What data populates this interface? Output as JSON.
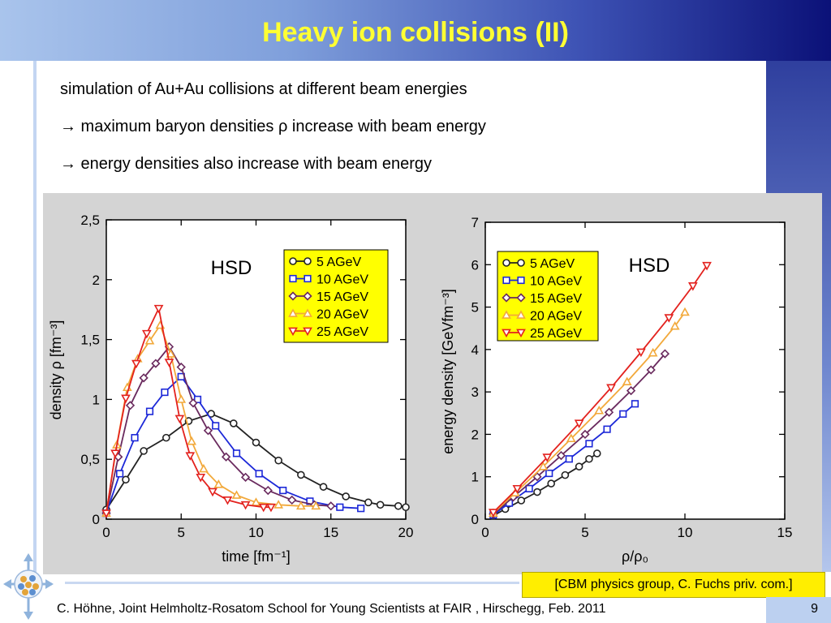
{
  "slide": {
    "title": "Heavy ion collisions (II)",
    "bullets": [
      "simulation of Au+Au collisions at different beam energies",
      "→ maximum baryon densities ρ increase with beam energy",
      "→ energy densities also increase with beam energy"
    ],
    "citation": "[CBM physics group, C. Fuchs priv. com.]",
    "footer": "C. Höhne,   Joint Helmholtz-Rosatom School for Young Scientists at FAIR , Hirschegg, Feb. 2011",
    "page_number": "9"
  },
  "colors": {
    "title": "#ffff33",
    "legend_bg": "#ffff00",
    "series": [
      "#222222",
      "#1c28d8",
      "#6a2a5e",
      "#f2a93b",
      "#e3221e"
    ]
  },
  "chart_data": [
    {
      "type": "line",
      "label": "HSD",
      "xlabel": "time [fm⁻¹]",
      "ylabel": "density ρ [fm⁻³]",
      "xlim": [
        0,
        20
      ],
      "ylim": [
        0,
        2.5
      ],
      "xticks": [
        "0",
        "5",
        "10",
        "15",
        "20"
      ],
      "yticks": [
        "0",
        "0,5",
        "1",
        "1,5",
        "2",
        "2,5"
      ],
      "legend_position": "top-right",
      "series": [
        {
          "name": "5 AGeV",
          "marker": "circle",
          "x": [
            0,
            1.3,
            2.5,
            4,
            5.5,
            7,
            8.5,
            10,
            11.5,
            13,
            14.5,
            16,
            17.5,
            18.3,
            19.5,
            20
          ],
          "y": [
            0.08,
            0.33,
            0.57,
            0.68,
            0.82,
            0.88,
            0.8,
            0.64,
            0.49,
            0.37,
            0.27,
            0.19,
            0.14,
            0.12,
            0.11,
            0.1
          ]
        },
        {
          "name": "10 AGeV",
          "marker": "square",
          "x": [
            0,
            0.9,
            1.9,
            2.9,
            3.9,
            5.0,
            6.1,
            7.3,
            8.7,
            10.2,
            11.8,
            13.6,
            15.6,
            17
          ],
          "y": [
            0.05,
            0.38,
            0.68,
            0.9,
            1.06,
            1.19,
            1.0,
            0.78,
            0.55,
            0.38,
            0.24,
            0.15,
            0.1,
            0.09
          ]
        },
        {
          "name": "15 AGeV",
          "marker": "diamond",
          "x": [
            0,
            0.8,
            1.6,
            2.5,
            3.3,
            4.2,
            5.0,
            5.8,
            6.8,
            8.0,
            9.3,
            10.8,
            12.4,
            13.9,
            15
          ],
          "y": [
            0.05,
            0.52,
            0.95,
            1.18,
            1.3,
            1.44,
            1.27,
            0.97,
            0.74,
            0.52,
            0.35,
            0.24,
            0.16,
            0.12,
            0.11
          ]
        },
        {
          "name": "20 AGeV",
          "marker": "triangle-up",
          "x": [
            0,
            0.7,
            1.4,
            2.1,
            2.9,
            3.6,
            4.3,
            5.0,
            5.7,
            6.5,
            7.5,
            8.7,
            10.0,
            11.5,
            13.0,
            14
          ],
          "y": [
            0.05,
            0.62,
            1.1,
            1.34,
            1.49,
            1.62,
            1.38,
            1.0,
            0.65,
            0.42,
            0.29,
            0.2,
            0.14,
            0.12,
            0.11,
            0.11
          ]
        },
        {
          "name": "25 AGeV",
          "marker": "triangle-down",
          "x": [
            0,
            0.6,
            1.3,
            2.0,
            2.7,
            3.5,
            4.2,
            4.9,
            5.6,
            6.3,
            7.1,
            8.1,
            9.3,
            10.5,
            11
          ],
          "y": [
            0.05,
            0.55,
            1.01,
            1.3,
            1.55,
            1.76,
            1.31,
            0.84,
            0.53,
            0.35,
            0.23,
            0.16,
            0.12,
            0.1,
            0.1
          ]
        }
      ]
    },
    {
      "type": "line",
      "label": "HSD",
      "xlabel": "ρ/ρ₀",
      "ylabel": "energy density [GeVfm⁻³]",
      "xlim": [
        0,
        15
      ],
      "ylim": [
        0,
        7
      ],
      "xticks": [
        "0",
        "5",
        "10",
        "15"
      ],
      "yticks": [
        "0",
        "1",
        "2",
        "3",
        "4",
        "5",
        "6",
        "7"
      ],
      "legend_position": "top-left",
      "series": [
        {
          "name": "5 AGeV",
          "marker": "circle",
          "x": [
            0.4,
            1.0,
            1.8,
            2.6,
            3.3,
            4.0,
            4.7,
            5.2,
            5.6
          ],
          "y": [
            0.08,
            0.24,
            0.44,
            0.64,
            0.84,
            1.04,
            1.24,
            1.42,
            1.55
          ]
        },
        {
          "name": "10 AGeV",
          "marker": "square",
          "x": [
            0.4,
            1.2,
            2.2,
            3.2,
            4.2,
            5.2,
            6.1,
            6.9,
            7.5
          ],
          "y": [
            0.1,
            0.38,
            0.72,
            1.08,
            1.42,
            1.78,
            2.12,
            2.48,
            2.72
          ]
        },
        {
          "name": "15 AGeV",
          "marker": "diamond",
          "x": [
            0.4,
            1.4,
            2.6,
            3.8,
            5.0,
            6.2,
            7.3,
            8.3,
            9.0
          ],
          "y": [
            0.12,
            0.52,
            1.0,
            1.5,
            2.0,
            2.52,
            3.03,
            3.52,
            3.9
          ]
        },
        {
          "name": "20 AGeV",
          "marker": "triangle-up",
          "x": [
            0.4,
            1.5,
            2.9,
            4.3,
            5.7,
            7.1,
            8.4,
            9.5,
            10.0
          ],
          "y": [
            0.14,
            0.62,
            1.24,
            1.9,
            2.56,
            3.24,
            3.92,
            4.55,
            4.88
          ]
        },
        {
          "name": "25 AGeV",
          "marker": "triangle-down",
          "x": [
            0.4,
            1.6,
            3.1,
            4.7,
            6.3,
            7.8,
            9.2,
            10.4,
            11.1
          ],
          "y": [
            0.16,
            0.72,
            1.46,
            2.26,
            3.1,
            3.94,
            4.75,
            5.5,
            5.98
          ]
        }
      ]
    }
  ]
}
